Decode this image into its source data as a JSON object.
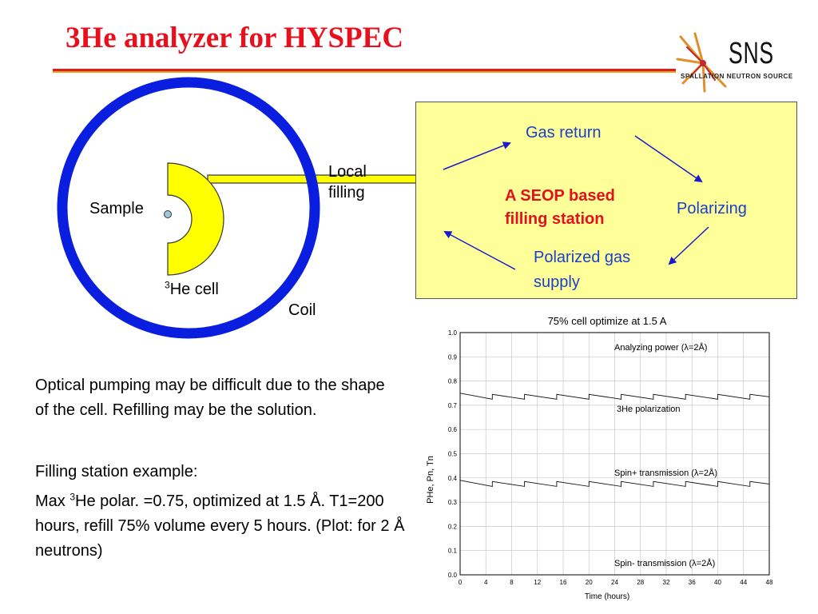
{
  "slide": {
    "title": "3He analyzer for HYSPEC"
  },
  "logo": {
    "name": "SNS",
    "subtitle": "SPALLATION NEUTRON SOURCE"
  },
  "schematic": {
    "local_filling": "Local filling",
    "sample": "Sample",
    "cell_sup": "3",
    "cell": "He cell",
    "coil": "Coil"
  },
  "station": {
    "gas_return": "Gas return",
    "name": "A SEOP based filling station",
    "polarizing": "Polarizing",
    "supply": "Polarized gas supply"
  },
  "body_text": {
    "para1": "Optical pumping may be difficult due to the shape of the cell. Refilling may be the solution.",
    "para2": "Filling station example:",
    "para3_prefix": "Max ",
    "para3_sup": "3",
    "para3_rest": "He polar. =0.75, optimized at 1.5 Å. T1=200 hours, refill 75% volume every 5 hours. (Plot: for 2 Å neutrons)"
  },
  "colors": {
    "title": "#e8101c",
    "coil": "#0a1ee0",
    "cell": "#ffff00",
    "station_bg": "#ffff99",
    "arrows": "#1a1acc"
  },
  "chart_data": {
    "type": "line",
    "title": "75% cell optimize at 1.5 A",
    "xlabel": "Time (hours)",
    "ylabel": "PHe, Pn, Tn",
    "xlim": [
      0,
      48
    ],
    "ylim": [
      0.0,
      1.0
    ],
    "x_ticks": [
      0,
      4,
      8,
      12,
      16,
      20,
      24,
      28,
      32,
      36,
      40,
      44,
      48
    ],
    "y_ticks": [
      0.0,
      0.1,
      0.2,
      0.3,
      0.4,
      0.5,
      0.6,
      0.7,
      0.8,
      0.9,
      1.0
    ],
    "grid": true,
    "series": [
      {
        "name": "Analyzing power (λ=2Å)",
        "x": [],
        "y": []
      },
      {
        "name": "3He polarization",
        "x": [
          0,
          1,
          5,
          5,
          10,
          10,
          15,
          15,
          20,
          20,
          25,
          25,
          30,
          30,
          35,
          35,
          40,
          40,
          45,
          45,
          48
        ],
        "y": [
          0.75,
          0.745,
          0.725,
          0.745,
          0.725,
          0.745,
          0.725,
          0.745,
          0.725,
          0.745,
          0.725,
          0.745,
          0.725,
          0.745,
          0.725,
          0.745,
          0.725,
          0.745,
          0.725,
          0.745,
          0.735
        ]
      },
      {
        "name": "Spin+ transmission (λ=2Å)",
        "x": [
          0,
          1,
          5,
          5,
          10,
          10,
          15,
          15,
          20,
          20,
          25,
          25,
          30,
          30,
          35,
          35,
          40,
          40,
          45,
          45,
          48
        ],
        "y": [
          0.39,
          0.385,
          0.365,
          0.385,
          0.365,
          0.385,
          0.365,
          0.385,
          0.365,
          0.385,
          0.365,
          0.385,
          0.365,
          0.385,
          0.365,
          0.385,
          0.365,
          0.385,
          0.365,
          0.385,
          0.375
        ]
      },
      {
        "name": "Spin- transmission (λ=2Å)",
        "x": [],
        "y": []
      }
    ]
  }
}
